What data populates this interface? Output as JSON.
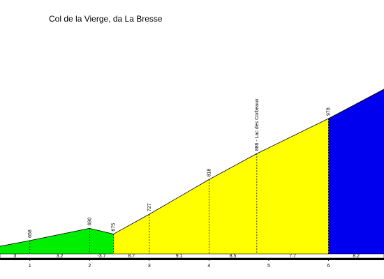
{
  "chart_data": {
    "type": "profile",
    "title": "Col de la Vierge, da La Bresse",
    "x": [
      0.5,
      1,
      2,
      2.4,
      3,
      4,
      4.8,
      6,
      6.93
    ],
    "values": [
      643,
      658,
      690,
      675,
      727,
      818,
      886,
      978,
      1055
    ],
    "value_labels": [
      null,
      "658",
      "690",
      "675",
      "727",
      "818",
      "886 - Lac des Corbeaux",
      "978",
      null
    ],
    "gradients": [
      3,
      3.2,
      -3.7,
      8.7,
      9.1,
      8.5,
      7.7,
      8.2
    ],
    "segment_colors": [
      "#00ee00",
      "#00ee00",
      "#00ee00",
      "#ffff00",
      "#ffff00",
      "#ffff00",
      "#ffff00",
      "#0000ee"
    ],
    "xlim": [
      0.5,
      6.93
    ],
    "ylim": [
      612,
      1106
    ],
    "xticks": [
      1,
      2,
      3,
      4,
      5,
      6
    ]
  }
}
